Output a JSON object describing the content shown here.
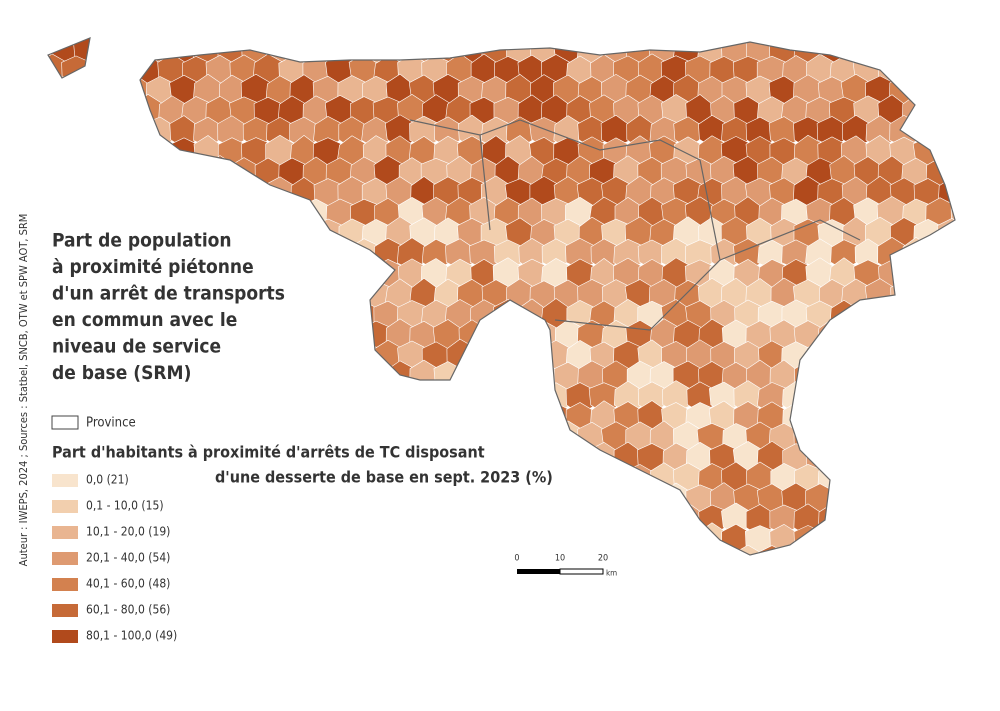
{
  "title": {
    "lines": [
      "Part de population",
      "à proximité piétonne",
      "d'un arrêt de transports",
      "en commun avec le",
      "niveau de service",
      "de base (SRM)"
    ]
  },
  "province_legend": "Province",
  "legend": {
    "title_lines": [
      "Part d'habitants à proximité d'arrêts de TC disposant",
      "d'une desserte de base en sept. 2023 (%)"
    ],
    "classes": [
      {
        "label": "0,0 (21)",
        "color": "#f8e4cd"
      },
      {
        "label": "0,1 - 10,0 (15)",
        "color": "#f2cfae"
      },
      {
        "label": "10,1 - 20,0 (19)",
        "color": "#e9b591"
      },
      {
        "label": "20,1 - 40,0 (54)",
        "color": "#de9a71"
      },
      {
        "label": "40,1 - 60,0 (48)",
        "color": "#d3814f"
      },
      {
        "label": "60,1 - 80,0 (56)",
        "color": "#c66a37"
      },
      {
        "label": "80,1 - 100,0 (49)",
        "color": "#b14a1c"
      }
    ]
  },
  "scale_bar": {
    "labels": [
      "0",
      "10",
      "20"
    ],
    "unit": "km"
  },
  "credits": "Auteur : IWEPS, 2024 ; Sources : Statbel, SNCB, OTW et SPW AOT, SRM"
}
